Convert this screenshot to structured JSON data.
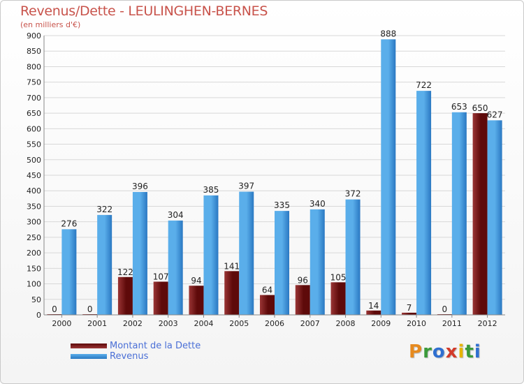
{
  "colors": {
    "title": "#c8534b",
    "dette_dark": "#5e0a0a",
    "dette_light": "#9a3535",
    "revenus_dark": "#2a78c2",
    "revenus_light": "#5aaeea",
    "grid": "#d8d8d8",
    "axis_text": "#222222",
    "legend_text": "#4a6fd6"
  },
  "legend": {
    "dette_label": "Montant de la Dette",
    "revenus_label": "Revenus"
  },
  "logo": {
    "text": "Proxiti",
    "letters": [
      "P",
      "r",
      "o",
      "x",
      "i",
      "t",
      "i"
    ],
    "letter_colors": [
      "#e68a1f",
      "#3a9a3a",
      "#2f6fd0",
      "#d23a2a",
      "#e6b400",
      "#3a9a3a",
      "#2f6fd0"
    ]
  },
  "chart_data": {
    "type": "bar",
    "title": "Revenus/Dette - LEULINGHEN-BERNES",
    "subtitle": "(en milliers d'€)",
    "xlabel": "",
    "ylabel": "",
    "ylim": [
      0,
      900
    ],
    "yticks": [
      0,
      50,
      100,
      150,
      200,
      250,
      300,
      350,
      400,
      450,
      500,
      550,
      600,
      650,
      700,
      750,
      800,
      850,
      900
    ],
    "grid": true,
    "legend_position": "bottom-left",
    "categories": [
      "2000",
      "2001",
      "2002",
      "2003",
      "2004",
      "2005",
      "2006",
      "2007",
      "2008",
      "2009",
      "2010",
      "2011",
      "2012"
    ],
    "series": [
      {
        "name": "Montant de la Dette",
        "values": [
          0,
          0,
          122,
          107,
          94,
          141,
          64,
          96,
          105,
          14,
          7,
          0,
          650
        ]
      },
      {
        "name": "Revenus",
        "values": [
          276,
          322,
          396,
          304,
          385,
          397,
          335,
          340,
          372,
          888,
          722,
          653,
          627
        ]
      }
    ]
  }
}
